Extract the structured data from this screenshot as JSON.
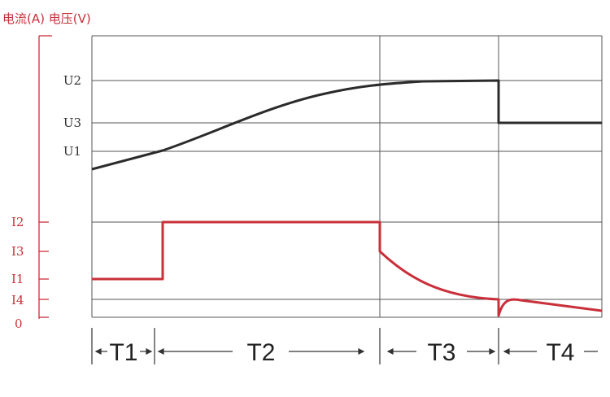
{
  "chart_data": {
    "type": "line",
    "title": "",
    "axis_title": "电流(A) 电压(V)",
    "voltage_ticks": [
      "U2",
      "U3",
      "U1"
    ],
    "current_ticks": [
      "I2",
      "I3",
      "I1",
      "I4",
      "0"
    ],
    "phases": [
      "T1",
      "T2",
      "T3",
      "T4"
    ],
    "series": [
      {
        "key": "voltage",
        "color": "#2b2b2b"
      },
      {
        "key": "current",
        "color": "#c9303a"
      }
    ],
    "grid": true
  }
}
